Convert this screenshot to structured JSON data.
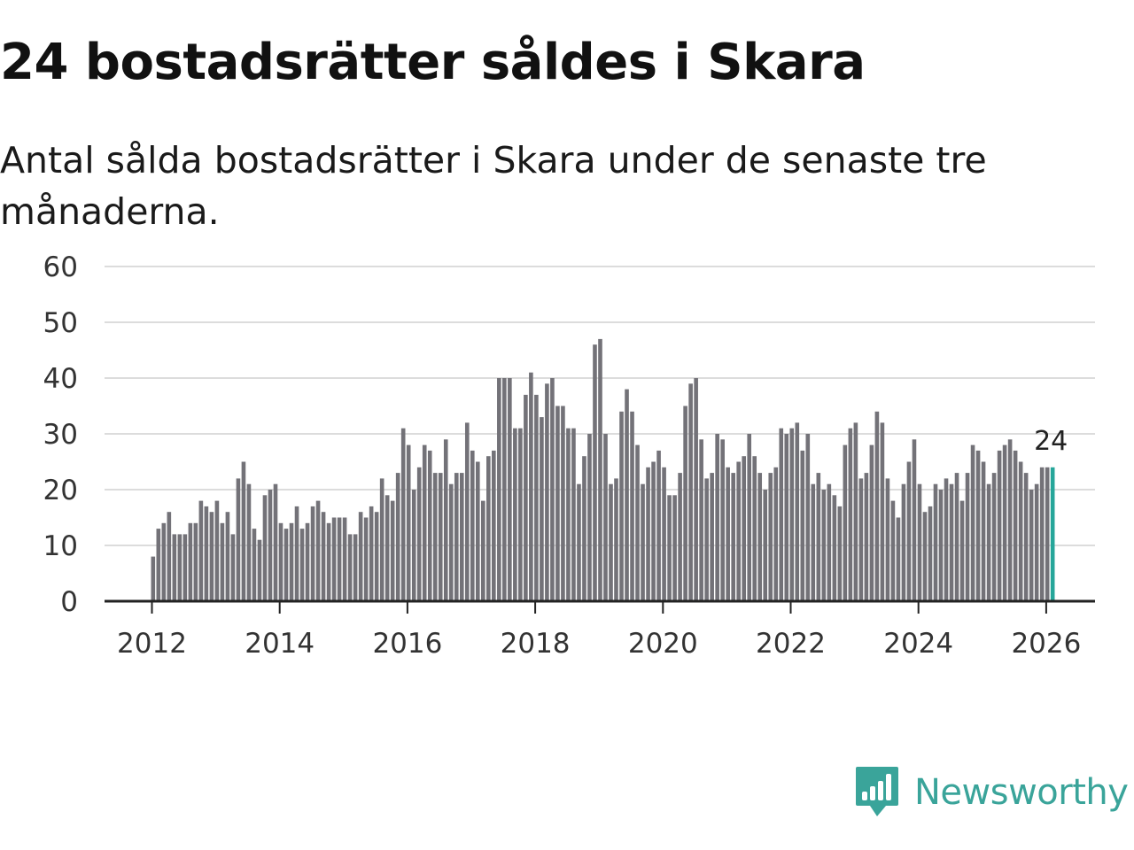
{
  "title": "24 bostadsrätter såldes i Skara",
  "subtitle": "Antal sålda bostadsrätter i Skara under de senaste tre månaderna.",
  "brand": {
    "name": "Newsworthy",
    "icon": "newsworthy-logo-icon",
    "color": "#3aa49a"
  },
  "colors": {
    "bar": "#737278",
    "highlight": "#26a69a",
    "grid": "#dcdcdc",
    "axis": "#222222"
  },
  "chart_data": {
    "type": "bar",
    "title": "24 bostadsrätter såldes i Skara",
    "xlabel": "",
    "ylabel": "",
    "ylim": [
      0,
      60
    ],
    "yticks": [
      0,
      10,
      20,
      30,
      40,
      50,
      60
    ],
    "xticks": [
      "2012",
      "2014",
      "2016",
      "2018",
      "2020",
      "2022",
      "2024",
      "2026"
    ],
    "x_start": 2012.0,
    "x_step": 0.08333,
    "grid": true,
    "values": [
      8,
      13,
      14,
      16,
      12,
      12,
      12,
      14,
      14,
      18,
      17,
      16,
      18,
      14,
      16,
      12,
      22,
      25,
      21,
      13,
      11,
      19,
      20,
      21,
      14,
      13,
      14,
      17,
      13,
      14,
      17,
      18,
      16,
      14,
      15,
      15,
      15,
      12,
      12,
      16,
      15,
      17,
      16,
      22,
      19,
      18,
      23,
      31,
      28,
      20,
      24,
      28,
      27,
      23,
      23,
      29,
      21,
      23,
      23,
      32,
      27,
      25,
      18,
      26,
      27,
      40,
      40,
      40,
      31,
      31,
      37,
      41,
      37,
      33,
      39,
      40,
      35,
      35,
      31,
      31,
      21,
      26,
      30,
      46,
      47,
      30,
      21,
      22,
      34,
      38,
      34,
      28,
      21,
      24,
      25,
      27,
      24,
      19,
      19,
      23,
      35,
      39,
      40,
      29,
      22,
      23,
      30,
      29,
      24,
      23,
      25,
      26,
      30,
      26,
      23,
      20,
      23,
      24,
      31,
      30,
      31,
      32,
      27,
      30,
      21,
      23,
      20,
      21,
      19,
      17,
      28,
      31,
      32,
      22,
      23,
      28,
      34,
      32,
      22,
      18,
      15,
      21,
      25,
      29,
      21,
      16,
      17,
      21,
      20,
      22,
      21,
      23,
      18,
      23,
      28,
      27,
      25,
      21,
      23,
      27,
      28,
      29,
      27,
      25,
      23,
      20,
      21,
      24,
      24,
      24
    ],
    "highlight_last": true,
    "annotation": {
      "text": "24"
    }
  }
}
